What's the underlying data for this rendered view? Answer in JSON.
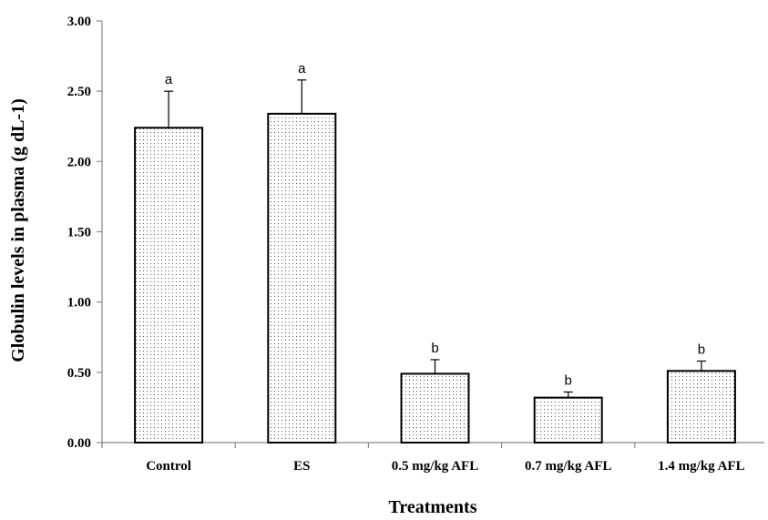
{
  "chart_data": {
    "type": "bar",
    "categories": [
      "Control",
      "ES",
      "0.5 mg/kg AFL",
      "0.7 mg/kg AFL",
      "1.4 mg/kg AFL"
    ],
    "values": [
      2.24,
      2.34,
      0.49,
      0.32,
      0.51
    ],
    "error_upper": [
      0.26,
      0.24,
      0.1,
      0.04,
      0.07
    ],
    "significance_labels": [
      "a",
      "a",
      "b",
      "b",
      "b"
    ],
    "ylabel": "Globulin levels in plasma (g dL-1)",
    "xlabel": "Treatments",
    "ylim": [
      0,
      3
    ],
    "yticks": [
      "0.00",
      "0.50",
      "1.00",
      "1.50",
      "2.00",
      "2.50",
      "3.00"
    ],
    "grid": false,
    "bar_fill": "dotted",
    "colors": {
      "bar_stroke": "#000000",
      "bar_fill_bg": "#ffffff",
      "dot": "#555555"
    }
  }
}
